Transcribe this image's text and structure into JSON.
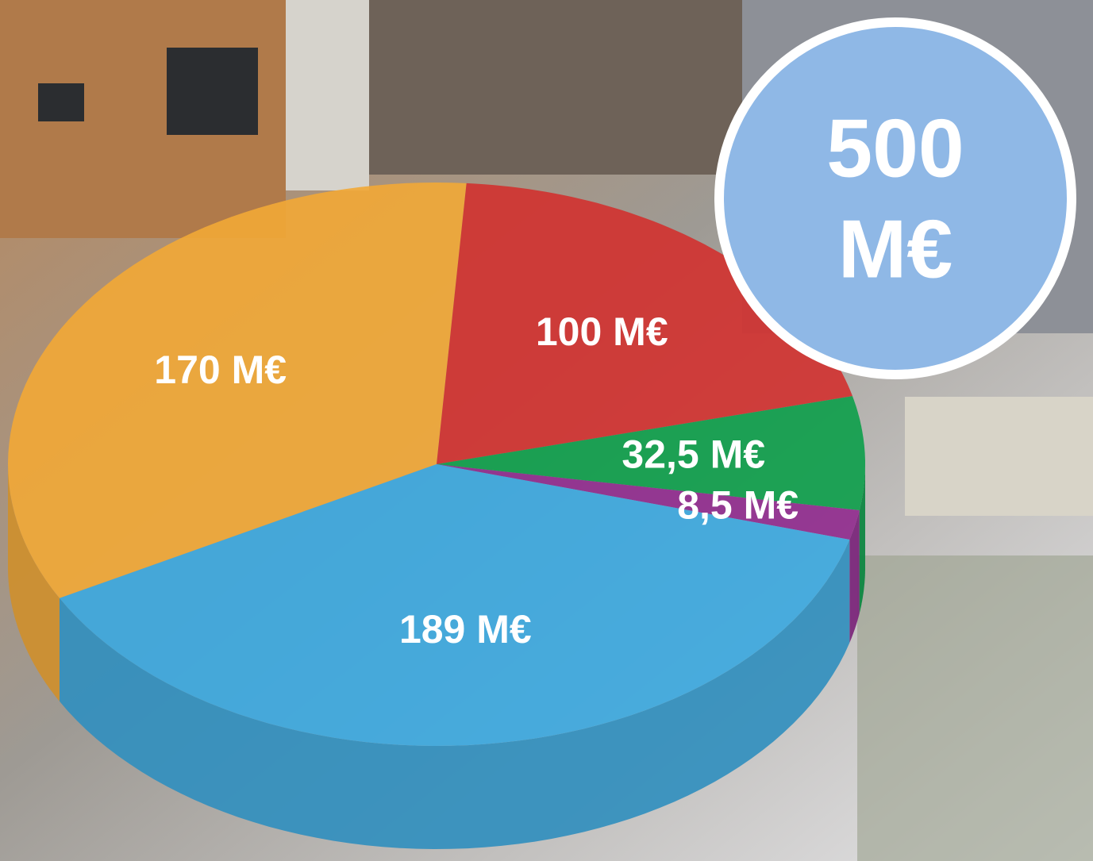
{
  "chart_data": {
    "type": "pie3d",
    "categories": [
      null,
      null,
      null,
      null,
      null
    ],
    "values": [
      170,
      100,
      32.5,
      8.5,
      189
    ],
    "value_labels": [
      "170 M€",
      "100 M€",
      "32,5 M€",
      "8,5 M€",
      "189 M€"
    ],
    "colors": [
      "#f2a836",
      "#d2312f",
      "#0c9e4a",
      "#902a8e",
      "#3ba8e0"
    ],
    "total": 500,
    "total_unit": "M€"
  }
}
